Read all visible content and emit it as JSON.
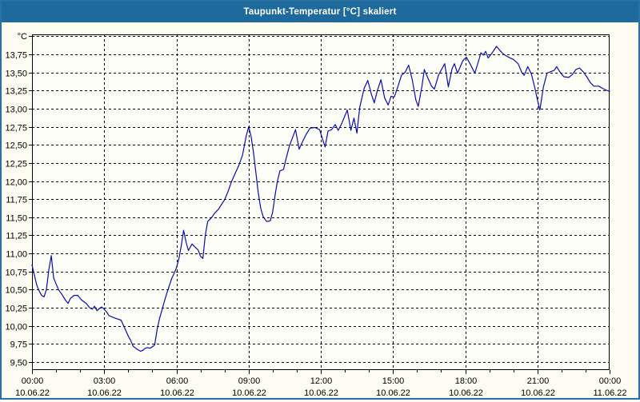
{
  "window": {
    "title": "Taupunkt-Temperatur [°C] skaliert"
  },
  "colors": {
    "frame_border": "#2b72a4",
    "titlebar_bg": "#1e6a9d",
    "titlebar_text": "#ffffff",
    "page_bg": "#fcfcf0",
    "plot_bg": "#fefef8",
    "grid": "#000000",
    "axis": "#000000",
    "tick_text": "#000000",
    "series_line": "#0a0ab4"
  },
  "chart_data": {
    "type": "line",
    "title": "Taupunkt-Temperatur [°C] skaliert",
    "ylabel": "°C",
    "xlabel": "",
    "grid": "dashed",
    "legend_position": "none",
    "x_unit": "hours",
    "x_range": [
      0,
      24
    ],
    "ylim": [
      9.39,
      14.03
    ],
    "y_axis": {
      "unit_label": "°C",
      "grid_min": 9.5,
      "grid_max": 14.0,
      "grid_step": 0.25,
      "tick_labels": [
        "9,50",
        "9,75",
        "10,00",
        "10,25",
        "10,50",
        "10,75",
        "11,00",
        "11,25",
        "11,50",
        "11,75",
        "12,00",
        "12,25",
        "12,50",
        "12,75",
        "13,00",
        "13,25",
        "13,50",
        "13,75"
      ]
    },
    "x_axis": {
      "major_step_hours": 3,
      "minor_step_hours": 1,
      "ticks": [
        {
          "hour": 0,
          "time": "00:00",
          "date": "10.06.22"
        },
        {
          "hour": 3,
          "time": "03:00",
          "date": "10.06.22"
        },
        {
          "hour": 6,
          "time": "06:00",
          "date": "10.06.22"
        },
        {
          "hour": 9,
          "time": "09:00",
          "date": "10.06.22"
        },
        {
          "hour": 12,
          "time": "12:00",
          "date": "10.06.22"
        },
        {
          "hour": 15,
          "time": "15:00",
          "date": "10.06.22"
        },
        {
          "hour": 18,
          "time": "18:00",
          "date": "10.06.22"
        },
        {
          "hour": 21,
          "time": "21:00",
          "date": "10.06.22"
        },
        {
          "hour": 24,
          "time": "00:00",
          "date": "11.06.22"
        }
      ]
    },
    "series": [
      {
        "name": "Taupunkt-Temperatur",
        "color": "#0a0ab4",
        "points": [
          [
            0,
            10.84
          ],
          [
            0.1,
            10.7
          ],
          [
            0.2,
            10.56
          ],
          [
            0.3,
            10.48
          ],
          [
            0.4,
            10.42
          ],
          [
            0.5,
            10.4
          ],
          [
            0.6,
            10.5
          ],
          [
            0.7,
            10.78
          ],
          [
            0.8,
            10.97
          ],
          [
            0.9,
            10.66
          ],
          [
            1,
            10.58
          ],
          [
            1.1,
            10.5
          ],
          [
            1.25,
            10.43
          ],
          [
            1.4,
            10.35
          ],
          [
            1.5,
            10.31
          ],
          [
            1.6,
            10.38
          ],
          [
            1.75,
            10.42
          ],
          [
            1.9,
            10.42
          ],
          [
            2.05,
            10.36
          ],
          [
            2.25,
            10.31
          ],
          [
            2.4,
            10.25
          ],
          [
            2.5,
            10.23
          ],
          [
            2.6,
            10.27
          ],
          [
            2.7,
            10.21
          ],
          [
            2.8,
            10.24
          ],
          [
            2.9,
            10.26
          ],
          [
            3,
            10.23
          ],
          [
            3.1,
            10.19
          ],
          [
            3.2,
            10.14
          ],
          [
            3.35,
            10.12
          ],
          [
            3.5,
            10.1
          ],
          [
            3.7,
            10.08
          ],
          [
            3.85,
            9.97
          ],
          [
            4,
            9.86
          ],
          [
            4.1,
            9.8
          ],
          [
            4.2,
            9.72
          ],
          [
            4.35,
            9.68
          ],
          [
            4.5,
            9.65
          ],
          [
            4.6,
            9.66
          ],
          [
            4.7,
            9.69
          ],
          [
            4.8,
            9.7
          ],
          [
            4.9,
            9.69
          ],
          [
            5,
            9.71
          ],
          [
            5.1,
            9.74
          ],
          [
            5.2,
            9.95
          ],
          [
            5.3,
            10.1
          ],
          [
            5.4,
            10.22
          ],
          [
            5.5,
            10.34
          ],
          [
            5.6,
            10.45
          ],
          [
            5.7,
            10.55
          ],
          [
            5.8,
            10.65
          ],
          [
            5.9,
            10.72
          ],
          [
            6,
            10.8
          ],
          [
            6.1,
            10.92
          ],
          [
            6.2,
            11.1
          ],
          [
            6.3,
            11.32
          ],
          [
            6.4,
            11.16
          ],
          [
            6.5,
            11.04
          ],
          [
            6.65,
            11.13
          ],
          [
            6.8,
            11.08
          ],
          [
            6.9,
            11.05
          ],
          [
            7,
            10.96
          ],
          [
            7.1,
            10.93
          ],
          [
            7.2,
            11.25
          ],
          [
            7.3,
            11.44
          ],
          [
            7.45,
            11.49
          ],
          [
            7.6,
            11.56
          ],
          [
            7.75,
            11.61
          ],
          [
            7.9,
            11.69
          ],
          [
            8,
            11.74
          ],
          [
            8.15,
            11.86
          ],
          [
            8.3,
            12
          ],
          [
            8.45,
            12.11
          ],
          [
            8.6,
            12.22
          ],
          [
            8.75,
            12.36
          ],
          [
            8.9,
            12.62
          ],
          [
            9,
            12.75
          ],
          [
            9.1,
            12.62
          ],
          [
            9.2,
            12.4
          ],
          [
            9.3,
            12.12
          ],
          [
            9.4,
            11.84
          ],
          [
            9.5,
            11.63
          ],
          [
            9.6,
            11.51
          ],
          [
            9.75,
            11.44
          ],
          [
            9.9,
            11.45
          ],
          [
            10,
            11.57
          ],
          [
            10.1,
            11.8
          ],
          [
            10.2,
            12
          ],
          [
            10.3,
            12.14
          ],
          [
            10.45,
            12.16
          ],
          [
            10.55,
            12.3
          ],
          [
            10.7,
            12.49
          ],
          [
            10.85,
            12.62
          ],
          [
            10.95,
            12.71
          ],
          [
            11.1,
            12.44
          ],
          [
            11.25,
            12.55
          ],
          [
            11.4,
            12.65
          ],
          [
            11.55,
            12.73
          ],
          [
            11.75,
            12.74
          ],
          [
            11.95,
            12.71
          ],
          [
            12.1,
            12.55
          ],
          [
            12.18,
            12.47
          ],
          [
            12.3,
            12.69
          ],
          [
            12.45,
            12.71
          ],
          [
            12.6,
            12.78
          ],
          [
            12.72,
            12.7
          ],
          [
            12.85,
            12.78
          ],
          [
            13,
            12.9
          ],
          [
            13.1,
            12.98
          ],
          [
            13.25,
            12.7
          ],
          [
            13.38,
            12.87
          ],
          [
            13.5,
            12.66
          ],
          [
            13.62,
            13.02
          ],
          [
            13.8,
            13.28
          ],
          [
            13.95,
            13.39
          ],
          [
            14.1,
            13.2
          ],
          [
            14.22,
            13.08
          ],
          [
            14.35,
            13.25
          ],
          [
            14.5,
            13.4
          ],
          [
            14.65,
            13.15
          ],
          [
            14.8,
            13.05
          ],
          [
            14.92,
            13.17
          ],
          [
            15.05,
            13.16
          ],
          [
            15.2,
            13.3
          ],
          [
            15.35,
            13.46
          ],
          [
            15.5,
            13.5
          ],
          [
            15.65,
            13.6
          ],
          [
            15.8,
            13.4
          ],
          [
            15.95,
            13.12
          ],
          [
            16.05,
            13.03
          ],
          [
            16.2,
            13.3
          ],
          [
            16.3,
            13.54
          ],
          [
            16.45,
            13.42
          ],
          [
            16.6,
            13.31
          ],
          [
            16.72,
            13.27
          ],
          [
            16.9,
            13.47
          ],
          [
            17.05,
            13.56
          ],
          [
            17.15,
            13.62
          ],
          [
            17.3,
            13.3
          ],
          [
            17.45,
            13.55
          ],
          [
            17.55,
            13.62
          ],
          [
            17.68,
            13.49
          ],
          [
            17.9,
            13.66
          ],
          [
            18.05,
            13.71
          ],
          [
            18.2,
            13.62
          ],
          [
            18.4,
            13.49
          ],
          [
            18.55,
            13.65
          ],
          [
            18.65,
            13.77
          ],
          [
            18.75,
            13.74
          ],
          [
            18.85,
            13.79
          ],
          [
            18.95,
            13.7
          ],
          [
            19.1,
            13.76
          ],
          [
            19.3,
            13.86
          ],
          [
            19.45,
            13.8
          ],
          [
            19.6,
            13.75
          ],
          [
            19.8,
            13.71
          ],
          [
            20,
            13.68
          ],
          [
            20.2,
            13.62
          ],
          [
            20.35,
            13.5
          ],
          [
            20.45,
            13.46
          ],
          [
            20.6,
            13.58
          ],
          [
            20.75,
            13.48
          ],
          [
            20.9,
            13.28
          ],
          [
            21,
            13.12
          ],
          [
            21.1,
            12.98
          ],
          [
            21.25,
            13.3
          ],
          [
            21.4,
            13.49
          ],
          [
            21.55,
            13.51
          ],
          [
            21.7,
            13.53
          ],
          [
            21.8,
            13.58
          ],
          [
            21.95,
            13.5
          ],
          [
            22.1,
            13.44
          ],
          [
            22.3,
            13.43
          ],
          [
            22.45,
            13.47
          ],
          [
            22.6,
            13.54
          ],
          [
            22.75,
            13.56
          ],
          [
            22.9,
            13.51
          ],
          [
            23.05,
            13.44
          ],
          [
            23.2,
            13.36
          ],
          [
            23.35,
            13.31
          ],
          [
            23.55,
            13.31
          ],
          [
            23.7,
            13.28
          ],
          [
            23.9,
            13.25
          ],
          [
            24,
            13.24
          ]
        ]
      }
    ]
  }
}
